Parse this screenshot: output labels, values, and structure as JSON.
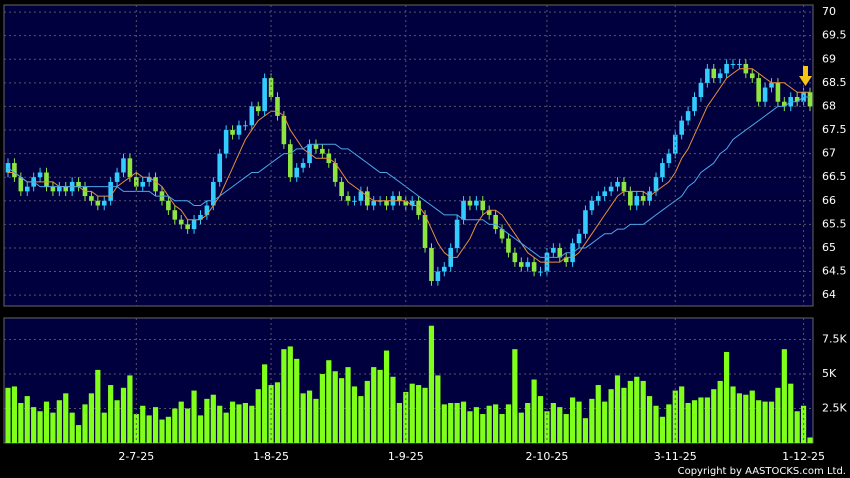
{
  "chart_data": [
    {
      "type": "candlestick",
      "up_color": "#33ccff",
      "down_color": "#8ee53f",
      "ylim": [
        63.77,
        70.15
      ],
      "yticks": [
        64,
        64.5,
        65,
        65.5,
        66,
        66.5,
        67,
        67.5,
        68,
        68.5,
        69,
        69.5,
        70
      ],
      "grid": true,
      "open": [
        66.6,
        66.8,
        66.5,
        66.2,
        66.3,
        66.5,
        66.6,
        66.3,
        66.2,
        66.3,
        66.2,
        66.4,
        66.3,
        66.1,
        66.0,
        65.9,
        66.0,
        66.4,
        66.6,
        66.9,
        66.5,
        66.3,
        66.4,
        66.5,
        66.2,
        66.0,
        65.8,
        65.6,
        65.5,
        65.4,
        65.6,
        65.7,
        65.9,
        66.4,
        67.0,
        67.5,
        67.4,
        67.6,
        67.6,
        68.0,
        67.9,
        68.6,
        68.2,
        67.8,
        67.2,
        66.5,
        66.7,
        66.8,
        67.2,
        67.1,
        67.0,
        66.8,
        66.4,
        66.1,
        66.0,
        66.0,
        66.2,
        65.9,
        66.0,
        66.0,
        65.9,
        66.1,
        66.0,
        65.9,
        66.0,
        65.7,
        65.0,
        64.3,
        64.5,
        64.6,
        65.0,
        65.6,
        66.0,
        65.9,
        66.0,
        65.8,
        65.7,
        65.4,
        65.2,
        64.9,
        64.7,
        64.6,
        64.7,
        64.5,
        64.5,
        64.9,
        65.0,
        64.8,
        64.7,
        65.1,
        65.3,
        65.8,
        66.0,
        66.1,
        66.2,
        66.3,
        66.4,
        66.2,
        65.9,
        66.1,
        66.0,
        66.2,
        66.5,
        66.8,
        67.0,
        67.4,
        67.7,
        67.9,
        68.2,
        68.5,
        68.8,
        68.6,
        68.7,
        68.9,
        68.9,
        68.9,
        68.7,
        68.6,
        68.1,
        68.4,
        68.5,
        68.1,
        68.0,
        68.2,
        68.1,
        68.3
      ],
      "high": [
        66.9,
        66.9,
        66.6,
        66.4,
        66.6,
        66.7,
        66.7,
        66.4,
        66.4,
        66.4,
        66.5,
        66.5,
        66.4,
        66.2,
        66.1,
        66.1,
        66.5,
        66.7,
        67.0,
        67.0,
        66.6,
        66.5,
        66.6,
        66.6,
        66.3,
        66.1,
        65.9,
        65.7,
        65.6,
        65.7,
        65.8,
        66.0,
        66.5,
        67.1,
        67.6,
        67.6,
        67.7,
        67.7,
        68.1,
        68.1,
        68.7,
        68.7,
        68.3,
        67.9,
        67.3,
        66.8,
        66.9,
        67.3,
        67.3,
        67.2,
        67.1,
        66.9,
        66.5,
        66.2,
        66.1,
        66.3,
        66.3,
        66.1,
        66.1,
        66.1,
        66.2,
        66.2,
        66.1,
        66.1,
        66.1,
        65.8,
        65.1,
        64.6,
        64.7,
        65.1,
        65.7,
        66.1,
        66.1,
        66.1,
        66.1,
        65.9,
        65.8,
        65.5,
        65.3,
        65.0,
        64.8,
        64.8,
        64.8,
        64.6,
        65.0,
        65.1,
        65.1,
        64.9,
        65.2,
        65.4,
        65.9,
        66.1,
        66.2,
        66.3,
        66.4,
        66.5,
        66.5,
        66.3,
        66.2,
        66.2,
        66.3,
        66.6,
        66.9,
        67.1,
        67.5,
        67.8,
        68.0,
        68.3,
        68.6,
        68.9,
        68.9,
        68.8,
        69.0,
        69.0,
        69.0,
        69.0,
        68.8,
        68.7,
        68.5,
        68.6,
        68.6,
        68.2,
        68.3,
        68.3,
        68.4,
        68.4
      ],
      "low": [
        66.5,
        66.4,
        66.1,
        66.1,
        66.2,
        66.4,
        66.2,
        66.1,
        66.1,
        66.1,
        66.1,
        66.2,
        66.0,
        65.9,
        65.8,
        65.8,
        65.9,
        66.3,
        66.5,
        66.4,
        66.2,
        66.2,
        66.3,
        66.1,
        65.9,
        65.7,
        65.5,
        65.4,
        65.3,
        65.3,
        65.5,
        65.6,
        65.8,
        66.3,
        66.9,
        67.3,
        67.3,
        67.5,
        67.5,
        67.8,
        67.8,
        68.1,
        67.7,
        67.1,
        66.4,
        66.4,
        66.6,
        66.7,
        67.0,
        66.9,
        66.7,
        66.3,
        66.0,
        65.9,
        65.9,
        65.9,
        65.8,
        65.8,
        65.9,
        65.8,
        65.8,
        65.9,
        65.8,
        65.8,
        65.6,
        64.9,
        64.2,
        64.2,
        64.4,
        64.5,
        64.9,
        65.5,
        65.8,
        65.8,
        65.7,
        65.6,
        65.3,
        65.1,
        64.8,
        64.6,
        64.5,
        64.5,
        64.4,
        64.4,
        64.4,
        64.8,
        64.7,
        64.6,
        64.6,
        65.0,
        65.2,
        65.7,
        65.9,
        66.0,
        66.1,
        66.2,
        66.1,
        65.8,
        65.8,
        65.9,
        65.9,
        66.1,
        66.4,
        66.7,
        66.9,
        67.3,
        67.6,
        67.8,
        68.1,
        68.4,
        68.5,
        68.5,
        68.6,
        68.8,
        68.8,
        68.6,
        68.5,
        68.0,
        68.0,
        68.3,
        68.0,
        67.9,
        67.9,
        68.0,
        68.0,
        67.9
      ],
      "close": [
        66.8,
        66.5,
        66.2,
        66.3,
        66.5,
        66.6,
        66.3,
        66.2,
        66.3,
        66.2,
        66.4,
        66.3,
        66.1,
        66.0,
        65.9,
        66.0,
        66.4,
        66.6,
        66.9,
        66.5,
        66.3,
        66.4,
        66.5,
        66.2,
        66.0,
        65.8,
        65.6,
        65.5,
        65.4,
        65.6,
        65.7,
        65.9,
        66.4,
        67.0,
        67.5,
        67.4,
        67.6,
        67.6,
        68.0,
        67.9,
        68.6,
        68.2,
        67.8,
        67.2,
        66.5,
        66.7,
        66.8,
        67.2,
        67.1,
        67.0,
        66.8,
        66.4,
        66.1,
        66.0,
        66.0,
        66.2,
        65.9,
        66.0,
        66.0,
        65.9,
        66.1,
        66.0,
        65.9,
        66.0,
        65.7,
        65.0,
        64.3,
        64.5,
        64.6,
        65.0,
        65.6,
        66.0,
        65.9,
        66.0,
        65.8,
        65.7,
        65.4,
        65.2,
        64.9,
        64.7,
        64.6,
        64.7,
        64.5,
        64.5,
        64.9,
        65.0,
        64.8,
        64.7,
        65.1,
        65.3,
        65.8,
        66.0,
        66.1,
        66.2,
        66.3,
        66.4,
        66.2,
        65.9,
        66.1,
        66.0,
        66.2,
        66.5,
        66.8,
        67.0,
        67.4,
        67.7,
        67.9,
        68.2,
        68.5,
        68.8,
        68.6,
        68.7,
        68.9,
        68.9,
        68.9,
        68.7,
        68.6,
        68.1,
        68.4,
        68.5,
        68.1,
        68.0,
        68.2,
        68.1,
        68.3,
        68.0
      ],
      "lines": [
        {
          "color": "#e8903a",
          "values": [
            66.6,
            66.6,
            66.5,
            66.4,
            66.4,
            66.4,
            66.4,
            66.4,
            66.3,
            66.3,
            66.3,
            66.3,
            66.2,
            66.2,
            66.1,
            66.1,
            66.1,
            66.3,
            66.4,
            66.5,
            66.6,
            66.5,
            66.5,
            66.4,
            66.3,
            66.1,
            65.9,
            65.8,
            65.6,
            65.6,
            65.6,
            65.7,
            65.9,
            66.1,
            66.4,
            66.7,
            67.0,
            67.3,
            67.5,
            67.7,
            67.8,
            67.9,
            67.9,
            67.8,
            67.5,
            67.3,
            67.1,
            67.0,
            66.9,
            66.9,
            66.9,
            66.8,
            66.6,
            66.4,
            66.3,
            66.2,
            66.1,
            66.0,
            66.0,
            66.0,
            66.0,
            66.0,
            66.0,
            65.9,
            65.9,
            65.7,
            65.4,
            65.1,
            64.9,
            64.8,
            64.8,
            65.0,
            65.2,
            65.5,
            65.7,
            65.8,
            65.8,
            65.7,
            65.5,
            65.3,
            65.1,
            64.9,
            64.8,
            64.7,
            64.7,
            64.7,
            64.7,
            64.8,
            64.8,
            64.9,
            65.1,
            65.3,
            65.5,
            65.7,
            65.9,
            66.1,
            66.2,
            66.2,
            66.2,
            66.2,
            66.1,
            66.2,
            66.3,
            66.4,
            66.6,
            66.9,
            67.1,
            67.4,
            67.7,
            68.0,
            68.2,
            68.4,
            68.6,
            68.7,
            68.8,
            68.8,
            68.8,
            68.7,
            68.6,
            68.5,
            68.5,
            68.5,
            68.4,
            68.3,
            68.3,
            68.3
          ]
        },
        {
          "color": "#4aa8e8",
          "values": [
            66.7,
            66.6,
            66.5,
            66.4,
            66.4,
            66.3,
            66.3,
            66.3,
            66.3,
            66.3,
            66.3,
            66.3,
            66.3,
            66.3,
            66.3,
            66.3,
            66.3,
            66.3,
            66.2,
            66.2,
            66.2,
            66.2,
            66.2,
            66.1,
            66.1,
            66.1,
            66.0,
            66.0,
            66.0,
            65.9,
            65.9,
            66.0,
            66.0,
            66.1,
            66.2,
            66.3,
            66.4,
            66.5,
            66.6,
            66.6,
            66.7,
            66.8,
            66.9,
            67.0,
            67.0,
            67.1,
            67.1,
            67.2,
            67.2,
            67.2,
            67.2,
            67.2,
            67.1,
            67.1,
            67.0,
            66.9,
            66.8,
            66.7,
            66.6,
            66.6,
            66.5,
            66.4,
            66.3,
            66.2,
            66.1,
            66.0,
            65.9,
            65.8,
            65.7,
            65.7,
            65.7,
            65.6,
            65.6,
            65.6,
            65.6,
            65.5,
            65.5,
            65.4,
            65.3,
            65.2,
            65.1,
            65.0,
            64.9,
            64.8,
            64.8,
            64.8,
            64.8,
            64.9,
            64.9,
            65.0,
            65.0,
            65.1,
            65.2,
            65.3,
            65.3,
            65.4,
            65.4,
            65.5,
            65.5,
            65.5,
            65.6,
            65.7,
            65.8,
            65.9,
            66.0,
            66.1,
            66.3,
            66.4,
            66.6,
            66.7,
            66.8,
            67.0,
            67.1,
            67.3,
            67.4,
            67.5,
            67.6,
            67.7,
            67.8,
            67.9,
            68.0,
            68.0,
            68.1,
            68.1,
            68.2,
            68.2
          ]
        }
      ]
    },
    {
      "type": "bar",
      "color": "#7fff1a",
      "ylim": [
        0,
        9060
      ],
      "yticks": [
        {
          "value": 2500,
          "label": "2.5K"
        },
        {
          "value": 5000,
          "label": "5K"
        },
        {
          "value": 7500,
          "label": "7.5K"
        }
      ],
      "grid": true,
      "categories": [
        null,
        null,
        null,
        null,
        null,
        null,
        null,
        null,
        null,
        null,
        null,
        null,
        null,
        null,
        null,
        null,
        null,
        null,
        null,
        null,
        "2-7-25",
        null,
        null,
        null,
        null,
        null,
        null,
        null,
        null,
        null,
        null,
        null,
        null,
        null,
        null,
        null,
        null,
        null,
        null,
        null,
        null,
        "1-8-25",
        null,
        null,
        null,
        null,
        null,
        null,
        null,
        null,
        null,
        null,
        null,
        null,
        null,
        null,
        null,
        null,
        null,
        null,
        null,
        null,
        "1-9-25",
        null,
        null,
        null,
        null,
        null,
        null,
        null,
        null,
        null,
        null,
        null,
        null,
        null,
        null,
        null,
        null,
        null,
        null,
        null,
        null,
        null,
        "2-10-25",
        null,
        null,
        null,
        null,
        null,
        null,
        null,
        null,
        null,
        null,
        null,
        null,
        null,
        null,
        null,
        null,
        null,
        null,
        null,
        "3-11-25",
        null,
        null,
        null,
        null,
        null,
        null,
        null,
        null,
        null,
        null,
        null,
        null,
        null,
        null,
        null,
        null,
        null,
        null,
        null,
        "1-12-25",
        null
      ],
      "values": [
        4000,
        4100,
        2900,
        3400,
        2600,
        2300,
        3000,
        2200,
        3100,
        3600,
        2200,
        1300,
        2800,
        3600,
        5300,
        2200,
        4200,
        3100,
        4000,
        4900,
        2100,
        2700,
        2000,
        2600,
        1700,
        1900,
        2500,
        3000,
        2500,
        3800,
        2000,
        3200,
        3500,
        2700,
        2200,
        3000,
        2800,
        2900,
        2700,
        3900,
        5700,
        4200,
        4400,
        6800,
        7000,
        6100,
        3600,
        3800,
        3200,
        5000,
        6000,
        5200,
        4700,
        5500,
        4100,
        3400,
        4500,
        5500,
        5300,
        6700,
        4800,
        2900,
        3700,
        4300,
        4200,
        4000,
        8500,
        4900,
        2800,
        2900,
        2900,
        3000,
        2300,
        2600,
        2100,
        2700,
        2800,
        2100,
        2800,
        6800,
        2200,
        2900,
        4600,
        3400,
        2300,
        2900,
        2600,
        2100,
        3300,
        3000,
        1800,
        3200,
        4200,
        3000,
        3900,
        4900,
        4000,
        4500,
        4800,
        4500,
        3400,
        2700,
        1900,
        2800,
        3800,
        4100,
        2900,
        3100,
        3300,
        3300,
        3900,
        4500,
        6600,
        4100,
        3600,
        3500,
        3800,
        3100,
        3000,
        3000,
        4000,
        6800,
        4300,
        2300,
        2700,
        400
      ]
    }
  ],
  "copyright": "Copyright by AASTOCKS.com Ltd."
}
